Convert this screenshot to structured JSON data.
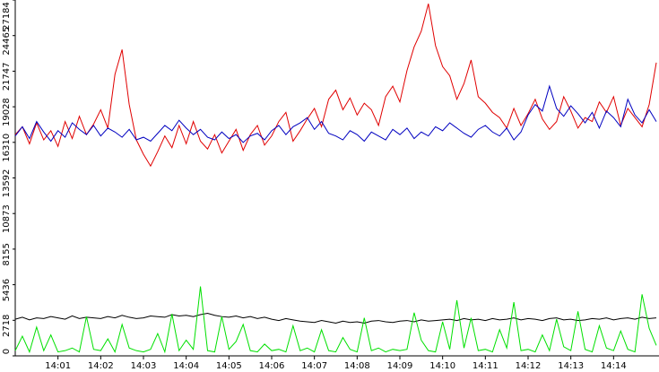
{
  "chart_data": {
    "type": "line",
    "x": [
      0,
      10,
      20,
      30,
      40,
      50,
      60,
      70,
      80,
      90,
      100,
      110,
      120,
      130,
      140,
      150,
      160,
      170,
      180,
      190,
      200,
      210,
      220,
      230,
      240,
      250,
      260,
      270,
      280,
      290,
      300,
      310,
      320,
      330,
      340,
      350,
      360,
      370,
      380,
      390,
      400,
      410,
      420,
      430,
      440,
      450,
      460,
      470,
      480,
      490,
      500,
      510,
      520,
      530,
      540,
      550,
      560,
      570,
      580,
      590,
      600,
      610,
      620,
      630,
      640,
      650,
      660,
      670,
      680,
      690,
      700,
      710,
      720,
      730,
      740,
      750,
      760,
      770,
      780,
      790,
      800,
      810,
      820,
      830,
      840,
      850,
      860,
      870,
      880,
      890,
      900
    ],
    "xlim": [
      0,
      900
    ],
    "xticks": [
      {
        "value": 60,
        "label": "14:01"
      },
      {
        "value": 120,
        "label": "14:02"
      },
      {
        "value": 180,
        "label": "14:03"
      },
      {
        "value": 240,
        "label": "14:04"
      },
      {
        "value": 300,
        "label": "14:05"
      },
      {
        "value": 360,
        "label": "14:06"
      },
      {
        "value": 420,
        "label": "14:07"
      },
      {
        "value": 480,
        "label": "14:08"
      },
      {
        "value": 540,
        "label": "14:09"
      },
      {
        "value": 600,
        "label": "14:10"
      },
      {
        "value": 660,
        "label": "14:11"
      },
      {
        "value": 720,
        "label": "14:12"
      },
      {
        "value": 780,
        "label": "14:13"
      },
      {
        "value": 840,
        "label": "14:14"
      }
    ],
    "ylim": [
      0,
      27184
    ],
    "yticks": [
      0,
      2718,
      5436,
      8155,
      10873,
      13592,
      16310,
      19028,
      21747,
      24465,
      27184
    ],
    "series": [
      {
        "color": "#e00000",
        "values": [
          16900,
          17500,
          16200,
          17800,
          16500,
          17200,
          16000,
          17900,
          16600,
          18300,
          16900,
          17700,
          18800,
          17400,
          21500,
          23400,
          19200,
          16500,
          15400,
          14500,
          15600,
          16800,
          15900,
          17600,
          16200,
          17900,
          16400,
          15800,
          16900,
          15500,
          16400,
          17300,
          15700,
          16900,
          17600,
          16100,
          16800,
          17900,
          18600,
          16400,
          17200,
          18100,
          18900,
          17500,
          19600,
          20300,
          18800,
          19700,
          18400,
          19300,
          18800,
          17600,
          19800,
          20600,
          19400,
          21800,
          23600,
          24800,
          26900,
          23700,
          22100,
          21400,
          19600,
          20800,
          22600,
          19800,
          19300,
          18600,
          18200,
          17400,
          18900,
          17600,
          18500,
          19600,
          18100,
          17300,
          17900,
          19800,
          18700,
          17400,
          18200,
          17900,
          19400,
          18600,
          19800,
          17600,
          18900,
          18200,
          17500,
          19200,
          22400
        ]
      },
      {
        "color": "#0000c0",
        "values": [
          16800,
          17500,
          16600,
          17900,
          17100,
          16400,
          17200,
          16700,
          17800,
          17300,
          16900,
          17600,
          16800,
          17400,
          17100,
          16700,
          17300,
          16500,
          16700,
          16400,
          17000,
          17600,
          17200,
          18000,
          17400,
          16900,
          17300,
          16700,
          16500,
          17100,
          16600,
          16900,
          16300,
          16800,
          17000,
          16500,
          17200,
          17600,
          16900,
          17500,
          17800,
          18200,
          17300,
          17900,
          17000,
          16800,
          16500,
          17200,
          16900,
          16400,
          17100,
          16800,
          16500,
          17300,
          16900,
          17400,
          16600,
          17100,
          16800,
          17500,
          17200,
          17800,
          17400,
          17000,
          16700,
          17300,
          17600,
          17100,
          16800,
          17400,
          16500,
          17100,
          18400,
          19200,
          18700,
          20600,
          18900,
          18300,
          19100,
          18500,
          17800,
          18600,
          17400,
          18700,
          18200,
          17500,
          19600,
          18400,
          17800,
          18800,
          17900
        ]
      },
      {
        "color": "#000000",
        "values": [
          2800,
          2950,
          2750,
          2900,
          2850,
          3000,
          2900,
          2800,
          3050,
          2850,
          2950,
          2900,
          2850,
          3000,
          2900,
          3100,
          2950,
          2850,
          2900,
          3050,
          3000,
          2950,
          3150,
          3050,
          3100,
          3000,
          3150,
          3250,
          3100,
          3000,
          2950,
          3050,
          2900,
          3000,
          2850,
          2950,
          2800,
          2700,
          2850,
          2750,
          2650,
          2600,
          2550,
          2700,
          2600,
          2500,
          2650,
          2550,
          2600,
          2500,
          2650,
          2700,
          2600,
          2550,
          2650,
          2700,
          2600,
          2750,
          2650,
          2700,
          2750,
          2800,
          2700,
          2850,
          2750,
          2800,
          2700,
          2850,
          2750,
          2800,
          2900,
          2750,
          2850,
          2800,
          2700,
          2850,
          2900,
          2750,
          2800,
          2700,
          2750,
          2850,
          2800,
          2900,
          2750,
          2850,
          2900,
          2800,
          2950,
          2850,
          2900
        ]
      },
      {
        "color": "#00e000",
        "values": [
          400,
          1500,
          300,
          2200,
          400,
          1600,
          300,
          400,
          600,
          300,
          3000,
          500,
          400,
          1300,
          300,
          2400,
          600,
          400,
          300,
          500,
          1700,
          300,
          3200,
          400,
          1200,
          500,
          5300,
          400,
          300,
          3000,
          500,
          1100,
          2400,
          400,
          300,
          900,
          400,
          500,
          300,
          2300,
          400,
          600,
          300,
          2000,
          400,
          300,
          1400,
          500,
          300,
          2900,
          400,
          600,
          300,
          500,
          400,
          500,
          3300,
          1200,
          400,
          300,
          2600,
          500,
          4250,
          600,
          2900,
          400,
          500,
          300,
          2000,
          600,
          4100,
          400,
          500,
          300,
          1600,
          400,
          2800,
          700,
          400,
          3400,
          500,
          300,
          2300,
          600,
          400,
          1900,
          500,
          300,
          4700,
          2100,
          800
        ]
      }
    ]
  }
}
